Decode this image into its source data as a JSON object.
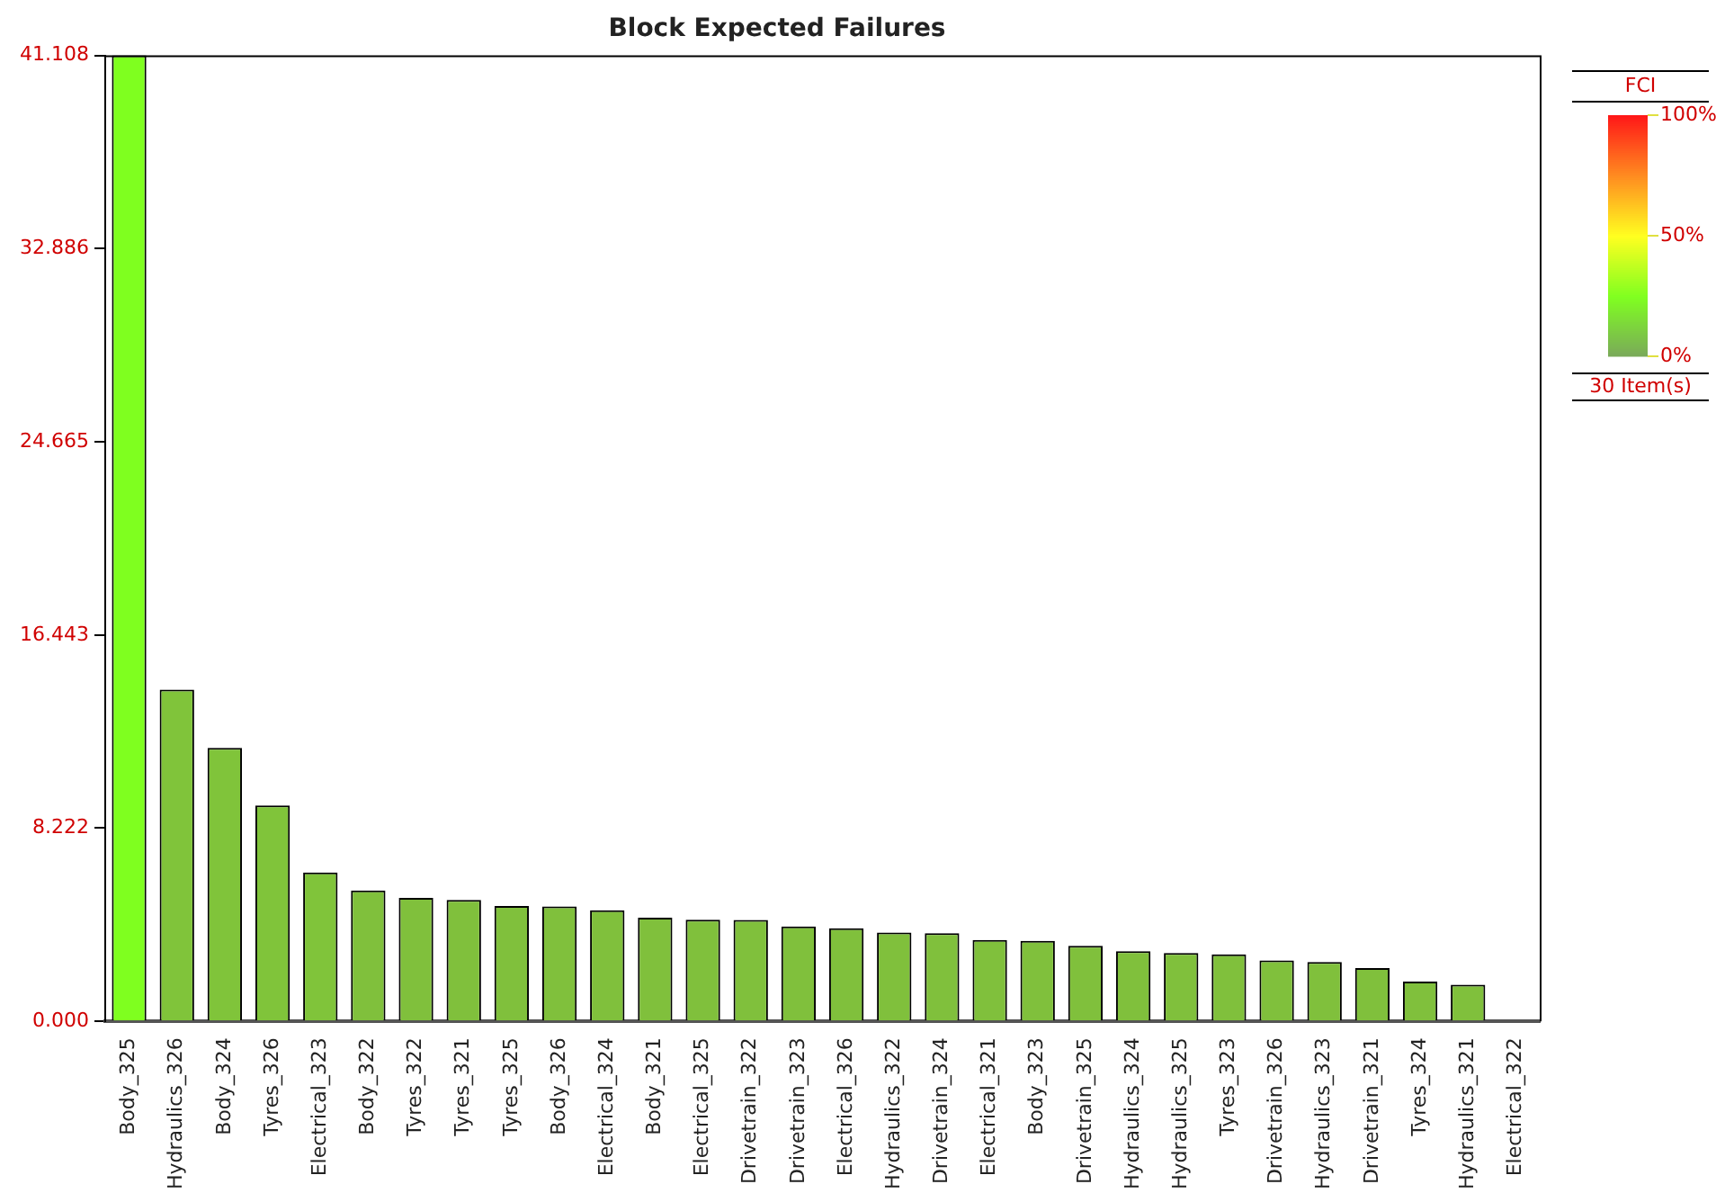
{
  "chart_data": {
    "type": "bar",
    "title": "Block Expected Failures",
    "categories": [
      "Body_325",
      "Hydraulics_326",
      "Body_324",
      "Tyres_326",
      "Electrical_323",
      "Body_322",
      "Tyres_322",
      "Tyres_321",
      "Tyres_325",
      "Body_326",
      "Electrical_324",
      "Body_321",
      "Electrical_325",
      "Drivetrain_322",
      "Drivetrain_323",
      "Electrical_326",
      "Hydraulics_322",
      "Drivetrain_324",
      "Electrical_321",
      "Body_323",
      "Drivetrain_325",
      "Hydraulics_324",
      "Hydraulics_325",
      "Tyres_323",
      "Drivetrain_326",
      "Hydraulics_323",
      "Drivetrain_321",
      "Tyres_324",
      "Hydraulics_321",
      "Electrical_322"
    ],
    "values": [
      41.108,
      14.12,
      11.64,
      9.19,
      6.34,
      5.57,
      5.25,
      5.17,
      4.91,
      4.89,
      4.73,
      4.41,
      4.33,
      4.32,
      4.04,
      3.96,
      3.78,
      3.75,
      3.46,
      3.43,
      3.22,
      2.99,
      2.91,
      2.85,
      2.59,
      2.53,
      2.27,
      1.69,
      1.56,
      0
    ],
    "colors": [
      "#7fff1f",
      "#80c43a",
      "#80c43a",
      "#80c43a",
      "#80c43a",
      "#80c03c",
      "#80c03c",
      "#80c03c",
      "#80c03c",
      "#80c03c",
      "#80c03c",
      "#80c03c",
      "#80c03c",
      "#80c03c",
      "#80c03c",
      "#80c03c",
      "#80c03c",
      "#80c03c",
      "#80c03c",
      "#80c03c",
      "#80c03c",
      "#80c03c",
      "#80c03c",
      "#80c03c",
      "#80c03c",
      "#80c03c",
      "#80c03c",
      "#80c03c",
      "#80c03c",
      "#80c03c"
    ],
    "ylim": [
      0,
      41.108
    ],
    "yticks": [
      {
        "value": 0,
        "label": "0.000"
      },
      {
        "value": 8.222,
        "label": "8.222"
      },
      {
        "value": 16.443,
        "label": "16.443"
      },
      {
        "value": 24.665,
        "label": "24.665"
      },
      {
        "value": 32.886,
        "label": "32.886"
      },
      {
        "value": 41.108,
        "label": "41.108"
      }
    ],
    "grid": false,
    "legend": false,
    "clabel": "FCI",
    "clim": [
      0,
      100
    ],
    "cticks": [
      {
        "value": 0,
        "label": "0%"
      },
      {
        "value": 50,
        "label": "50%"
      },
      {
        "value": 100,
        "label": "100%"
      }
    ],
    "annotations": [
      "30 Item(s)"
    ]
  }
}
